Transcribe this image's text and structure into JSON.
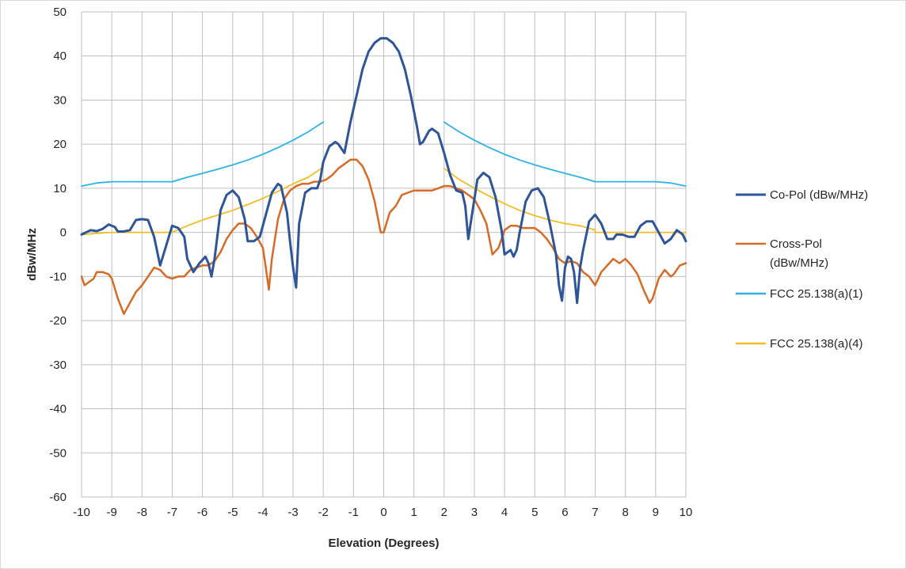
{
  "chart_data": {
    "type": "line",
    "xlabel": "Elevation (Degrees)",
    "ylabel": "dBw/MHz",
    "xlim": [
      -10,
      10
    ],
    "ylim": [
      -60,
      50
    ],
    "x_ticks": [
      "-10",
      "-9",
      "-8",
      "-7",
      "-6",
      "-5",
      "-4",
      "-3",
      "-2",
      "-1",
      "0",
      "1",
      "2",
      "3",
      "4",
      "5",
      "6",
      "7",
      "8",
      "9",
      "10"
    ],
    "y_ticks": [
      "50",
      "40",
      "30",
      "20",
      "10",
      "0",
      "-10",
      "-20",
      "-30",
      "-40",
      "-50",
      "-60"
    ],
    "grid": true,
    "legend_position": "right",
    "series": [
      {
        "name": "Co-Pol (dBw/MHz)",
        "color": "#2e5597",
        "points": [
          [
            -10,
            -0.5
          ],
          [
            -9.7,
            0.5
          ],
          [
            -9.5,
            0.3
          ],
          [
            -9.3,
            0.8
          ],
          [
            -9.1,
            1.8
          ],
          [
            -8.9,
            1.2
          ],
          [
            -8.8,
            0.2
          ],
          [
            -8.6,
            0.2
          ],
          [
            -8.4,
            0.5
          ],
          [
            -8.2,
            2.8
          ],
          [
            -8.0,
            3.0
          ],
          [
            -7.8,
            2.8
          ],
          [
            -7.6,
            -1.0
          ],
          [
            -7.4,
            -7.5
          ],
          [
            -7.2,
            -3.0
          ],
          [
            -7.0,
            1.5
          ],
          [
            -6.8,
            1.0
          ],
          [
            -6.6,
            -1.0
          ],
          [
            -6.5,
            -6.0
          ],
          [
            -6.3,
            -9.0
          ],
          [
            -6.1,
            -7.0
          ],
          [
            -5.9,
            -5.5
          ],
          [
            -5.8,
            -7.0
          ],
          [
            -5.7,
            -10.0
          ],
          [
            -5.6,
            -6.0
          ],
          [
            -5.4,
            5.0
          ],
          [
            -5.2,
            8.5
          ],
          [
            -5.0,
            9.5
          ],
          [
            -4.8,
            8.0
          ],
          [
            -4.6,
            3.0
          ],
          [
            -4.5,
            -2.0
          ],
          [
            -4.3,
            -2.0
          ],
          [
            -4.1,
            -1.0
          ],
          [
            -3.9,
            4.0
          ],
          [
            -3.7,
            9.0
          ],
          [
            -3.5,
            11.0
          ],
          [
            -3.4,
            10.5
          ],
          [
            -3.2,
            4.5
          ],
          [
            -3.1,
            -2.0
          ],
          [
            -3.0,
            -8.0
          ],
          [
            -2.9,
            -12.5
          ],
          [
            -2.8,
            2.0
          ],
          [
            -2.6,
            9.0
          ],
          [
            -2.4,
            10.0
          ],
          [
            -2.2,
            10.0
          ],
          [
            -2.1,
            12.0
          ],
          [
            -2.0,
            16.0
          ],
          [
            -1.8,
            19.5
          ],
          [
            -1.6,
            20.5
          ],
          [
            -1.5,
            20.0
          ],
          [
            -1.3,
            18.0
          ],
          [
            -1.1,
            25.0
          ],
          [
            -0.9,
            31.0
          ],
          [
            -0.7,
            37.0
          ],
          [
            -0.5,
            41.0
          ],
          [
            -0.3,
            43.0
          ],
          [
            -0.1,
            44.0
          ],
          [
            0.1,
            44.0
          ],
          [
            0.3,
            43.0
          ],
          [
            0.5,
            41.0
          ],
          [
            0.7,
            37.0
          ],
          [
            0.9,
            31.0
          ],
          [
            1.1,
            24.0
          ],
          [
            1.2,
            20.0
          ],
          [
            1.3,
            20.5
          ],
          [
            1.5,
            23.0
          ],
          [
            1.6,
            23.5
          ],
          [
            1.8,
            22.5
          ],
          [
            2.0,
            18.0
          ],
          [
            2.2,
            13.0
          ],
          [
            2.4,
            9.5
          ],
          [
            2.6,
            9.0
          ],
          [
            2.7,
            6.0
          ],
          [
            2.8,
            -1.5
          ],
          [
            2.9,
            3.0
          ],
          [
            3.1,
            12.0
          ],
          [
            3.3,
            13.5
          ],
          [
            3.5,
            12.5
          ],
          [
            3.7,
            8.0
          ],
          [
            3.9,
            0.5
          ],
          [
            4.0,
            -5.0
          ],
          [
            4.2,
            -4.0
          ],
          [
            4.3,
            -5.5
          ],
          [
            4.4,
            -4.0
          ],
          [
            4.5,
            0.0
          ],
          [
            4.7,
            7.0
          ],
          [
            4.9,
            9.5
          ],
          [
            5.1,
            10.0
          ],
          [
            5.3,
            8.0
          ],
          [
            5.5,
            2.0
          ],
          [
            5.7,
            -5.0
          ],
          [
            5.8,
            -12.0
          ],
          [
            5.9,
            -15.5
          ],
          [
            6.0,
            -8.0
          ],
          [
            6.1,
            -5.5
          ],
          [
            6.2,
            -6.0
          ],
          [
            6.3,
            -9.0
          ],
          [
            6.4,
            -16.0
          ],
          [
            6.5,
            -8.0
          ],
          [
            6.6,
            -4.0
          ],
          [
            6.8,
            2.5
          ],
          [
            7.0,
            4.0
          ],
          [
            7.2,
            2.0
          ],
          [
            7.4,
            -1.5
          ],
          [
            7.6,
            -1.5
          ],
          [
            7.7,
            -0.5
          ],
          [
            7.9,
            -0.5
          ],
          [
            8.1,
            -1.0
          ],
          [
            8.3,
            -1.0
          ],
          [
            8.5,
            1.5
          ],
          [
            8.7,
            2.5
          ],
          [
            8.9,
            2.5
          ],
          [
            9.1,
            0.0
          ],
          [
            9.3,
            -2.5
          ],
          [
            9.5,
            -1.5
          ],
          [
            9.7,
            0.5
          ],
          [
            9.9,
            -0.5
          ],
          [
            10,
            -2.0
          ]
        ]
      },
      {
        "name": "Cross-Pol (dBw/MHz)",
        "name_lines": [
          "Cross-Pol",
          "(dBw/MHz)"
        ],
        "color": "#d66b28",
        "points": [
          [
            -10,
            -10.0
          ],
          [
            -9.9,
            -12.0
          ],
          [
            -9.7,
            -11.0
          ],
          [
            -9.6,
            -10.5
          ],
          [
            -9.5,
            -9.0
          ],
          [
            -9.3,
            -9.0
          ],
          [
            -9.1,
            -9.5
          ],
          [
            -9.0,
            -10.5
          ],
          [
            -8.8,
            -15.0
          ],
          [
            -8.6,
            -18.5
          ],
          [
            -8.4,
            -16.0
          ],
          [
            -8.2,
            -13.5
          ],
          [
            -8.0,
            -12.0
          ],
          [
            -7.8,
            -10.0
          ],
          [
            -7.6,
            -8.0
          ],
          [
            -7.4,
            -8.5
          ],
          [
            -7.2,
            -10.0
          ],
          [
            -7.0,
            -10.5
          ],
          [
            -6.8,
            -10.0
          ],
          [
            -6.6,
            -10.0
          ],
          [
            -6.4,
            -8.5
          ],
          [
            -6.2,
            -8.0
          ],
          [
            -6.0,
            -7.5
          ],
          [
            -5.8,
            -7.5
          ],
          [
            -5.6,
            -6.5
          ],
          [
            -5.4,
            -4.5
          ],
          [
            -5.2,
            -1.5
          ],
          [
            -5.0,
            0.5
          ],
          [
            -4.8,
            2.0
          ],
          [
            -4.6,
            2.0
          ],
          [
            -4.4,
            1.0
          ],
          [
            -4.2,
            -1.0
          ],
          [
            -4.0,
            -3.5
          ],
          [
            -3.9,
            -8.0
          ],
          [
            -3.8,
            -13.0
          ],
          [
            -3.7,
            -6.0
          ],
          [
            -3.5,
            3.0
          ],
          [
            -3.3,
            7.5
          ],
          [
            -3.1,
            9.5
          ],
          [
            -2.9,
            10.5
          ],
          [
            -2.7,
            11.0
          ],
          [
            -2.5,
            11.0
          ],
          [
            -2.3,
            11.5
          ],
          [
            -2.1,
            11.5
          ],
          [
            -1.9,
            12.0
          ],
          [
            -1.7,
            13.0
          ],
          [
            -1.5,
            14.5
          ],
          [
            -1.3,
            15.5
          ],
          [
            -1.1,
            16.5
          ],
          [
            -0.9,
            16.5
          ],
          [
            -0.7,
            15.0
          ],
          [
            -0.5,
            12.0
          ],
          [
            -0.3,
            7.0
          ],
          [
            -0.1,
            0.0
          ],
          [
            0.0,
            0.0
          ],
          [
            0.2,
            4.5
          ],
          [
            0.4,
            6.0
          ],
          [
            0.6,
            8.5
          ],
          [
            0.8,
            9.0
          ],
          [
            1.0,
            9.5
          ],
          [
            1.2,
            9.5
          ],
          [
            1.4,
            9.5
          ],
          [
            1.6,
            9.5
          ],
          [
            1.8,
            10.0
          ],
          [
            2.0,
            10.5
          ],
          [
            2.2,
            10.5
          ],
          [
            2.4,
            10.0
          ],
          [
            2.6,
            9.5
          ],
          [
            2.8,
            8.5
          ],
          [
            3.0,
            7.5
          ],
          [
            3.2,
            5.0
          ],
          [
            3.4,
            2.0
          ],
          [
            3.6,
            -5.0
          ],
          [
            3.8,
            -3.5
          ],
          [
            4.0,
            0.5
          ],
          [
            4.2,
            1.5
          ],
          [
            4.4,
            1.5
          ],
          [
            4.6,
            1.0
          ],
          [
            4.8,
            1.0
          ],
          [
            5.0,
            1.0
          ],
          [
            5.2,
            0.0
          ],
          [
            5.4,
            -1.5
          ],
          [
            5.6,
            -3.5
          ],
          [
            5.8,
            -6.0
          ],
          [
            6.0,
            -7.0
          ],
          [
            6.2,
            -6.5
          ],
          [
            6.4,
            -7.0
          ],
          [
            6.6,
            -9.0
          ],
          [
            6.8,
            -10.0
          ],
          [
            7.0,
            -12.0
          ],
          [
            7.2,
            -9.0
          ],
          [
            7.4,
            -7.5
          ],
          [
            7.6,
            -6.0
          ],
          [
            7.8,
            -7.0
          ],
          [
            8.0,
            -6.0
          ],
          [
            8.2,
            -7.5
          ],
          [
            8.4,
            -9.5
          ],
          [
            8.6,
            -13.0
          ],
          [
            8.8,
            -16.0
          ],
          [
            8.9,
            -15.0
          ],
          [
            9.1,
            -10.5
          ],
          [
            9.3,
            -8.5
          ],
          [
            9.5,
            -10.0
          ],
          [
            9.6,
            -9.5
          ],
          [
            9.8,
            -7.5
          ],
          [
            10,
            -7.0
          ]
        ]
      },
      {
        "name": "FCC 25.138(a)(1)",
        "color": "#2eb2e8",
        "segments": [
          [
            [
              -10,
              10.5
            ],
            [
              -9.5,
              11.2
            ],
            [
              -9,
              11.5
            ],
            [
              -8,
              11.5
            ],
            [
              -7,
              11.5
            ],
            [
              -6.5,
              12.5
            ],
            [
              -6,
              13.4
            ],
            [
              -5.5,
              14.3
            ],
            [
              -5,
              15.3
            ],
            [
              -4.5,
              16.4
            ],
            [
              -4,
              17.7
            ],
            [
              -3.5,
              19.2
            ],
            [
              -3,
              20.9
            ],
            [
              -2.5,
              22.8
            ],
            [
              -2,
              25.0
            ]
          ],
          [
            [
              2,
              25.0
            ],
            [
              2.5,
              22.8
            ],
            [
              3,
              20.9
            ],
            [
              3.5,
              19.2
            ],
            [
              4,
              17.7
            ],
            [
              4.5,
              16.4
            ],
            [
              5,
              15.3
            ],
            [
              5.5,
              14.3
            ],
            [
              6,
              13.4
            ],
            [
              6.5,
              12.5
            ],
            [
              7,
              11.5
            ],
            [
              8,
              11.5
            ],
            [
              9,
              11.5
            ],
            [
              9.5,
              11.2
            ],
            [
              10,
              10.5
            ]
          ]
        ]
      },
      {
        "name": "FCC 25.138(a)(4)",
        "color": "#f2bd24",
        "segments": [
          [
            [
              -10,
              -0.5
            ],
            [
              -9,
              0.0
            ],
            [
              -8,
              0.0
            ],
            [
              -7,
              0.0
            ],
            [
              -6.5,
              1.5
            ],
            [
              -6,
              2.8
            ],
            [
              -5.5,
              3.9
            ],
            [
              -5,
              5.0
            ],
            [
              -4.5,
              6.3
            ],
            [
              -4,
              7.7
            ],
            [
              -3.5,
              9.3
            ],
            [
              -3,
              11.0
            ],
            [
              -2.5,
              12.5
            ],
            [
              -2,
              14.8
            ]
          ],
          [
            [
              2,
              14.5
            ],
            [
              2.5,
              12.0
            ],
            [
              3,
              10.0
            ],
            [
              3.5,
              8.2
            ],
            [
              4,
              6.5
            ],
            [
              4.5,
              5.0
            ],
            [
              5,
              3.8
            ],
            [
              5.5,
              2.8
            ],
            [
              6,
              2.0
            ],
            [
              6.5,
              1.5
            ],
            [
              7,
              0.5
            ],
            [
              7,
              0.0
            ],
            [
              8,
              0.0
            ],
            [
              9,
              0.0
            ],
            [
              10,
              0.0
            ]
          ]
        ]
      }
    ]
  }
}
